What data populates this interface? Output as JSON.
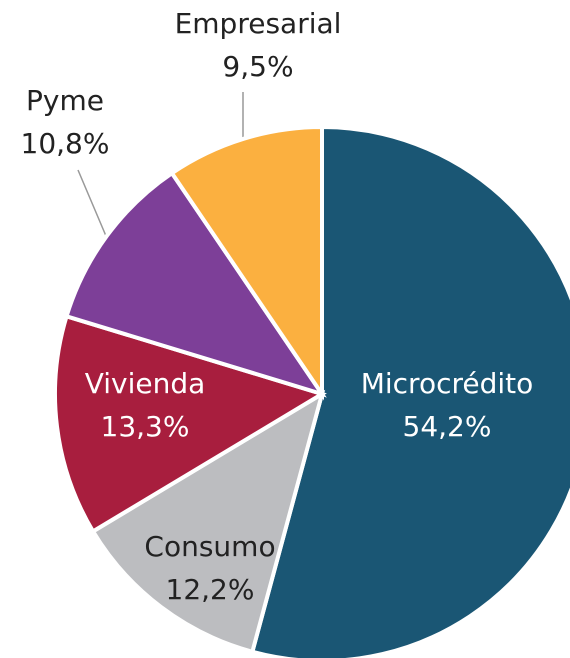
{
  "chart_data": {
    "type": "pie",
    "categories": [
      "Microcrédito",
      "Consumo",
      "Vivienda",
      "Pyme",
      "Empresarial"
    ],
    "values": [
      54.2,
      12.2,
      13.3,
      10.8,
      9.5
    ],
    "value_labels": [
      "54,2%",
      "12,2%",
      "13,3%",
      "10,8%",
      "9,5%"
    ],
    "colors": [
      "#1a5674",
      "#bcbdc0",
      "#a81e3e",
      "#7d3f98",
      "#fbb040"
    ]
  }
}
